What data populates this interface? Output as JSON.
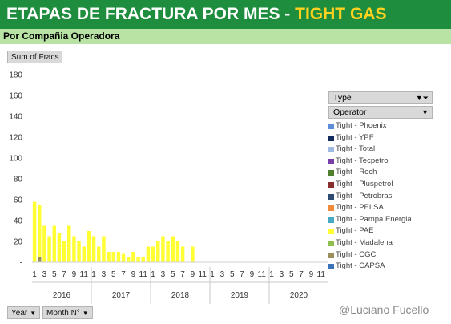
{
  "header": {
    "title_main": "ETAPAS DE FRACTURA POR MES - ",
    "title_accent": "TIGHT GAS",
    "subtitle": "Por Compañia Operadora"
  },
  "pivot": {
    "values_field": "Sum of Fracs",
    "series_field": "Type",
    "legend_field": "Operator",
    "axis_fields": [
      "Year",
      "Month N°"
    ]
  },
  "watermark": "@Luciano Fucello",
  "colors": {
    "Tight - Phoenix": "#5b8ed6",
    "Tight - YPF": "#132a5e",
    "Tight - Total": "#9dbbe2",
    "Tight - Tecpetrol": "#7a3fa6",
    "Tight - Roch": "#4f7f2e",
    "Tight - Pluspetrol": "#8a2f2f",
    "Tight - Petrobras": "#2d4a73",
    "Tight - PELSA": "#f28a3c",
    "Tight - Pampa Energia": "#48a9c5",
    "Tight - PAE": "#ffff33",
    "Tight - Madalena": "#8fbf4f",
    "Tight - CGC": "#9c8f5a",
    "Tight - CAPSA": "#3a73b8"
  },
  "chart_data": {
    "type": "bar",
    "stacked": true,
    "ylim": [
      0,
      180
    ],
    "yticks": [
      0,
      20,
      40,
      60,
      80,
      100,
      120,
      140,
      160,
      180
    ],
    "ytick_labels": [
      "-",
      "20",
      "40",
      "60",
      "80",
      "100",
      "120",
      "140",
      "160",
      "180"
    ],
    "grid": false,
    "legend_position": "right",
    "years": [
      "2016",
      "2017",
      "2018",
      "2019",
      "2020"
    ],
    "month_tick_labels": [
      "1",
      "3",
      "5",
      "7",
      "9",
      "11"
    ],
    "categories": [
      "2016-01",
      "2016-02",
      "2016-03",
      "2016-04",
      "2016-05",
      "2016-06",
      "2016-07",
      "2016-08",
      "2016-09",
      "2016-10",
      "2016-11",
      "2016-12",
      "2017-01",
      "2017-02",
      "2017-03",
      "2017-04",
      "2017-05",
      "2017-06",
      "2017-07",
      "2017-08",
      "2017-09",
      "2017-10",
      "2017-11",
      "2017-12",
      "2018-01",
      "2018-02",
      "2018-03",
      "2018-04",
      "2018-05",
      "2018-06",
      "2018-07",
      "2018-08",
      "2018-09",
      "2018-10",
      "2018-11",
      "2018-12",
      "2019-01",
      "2019-02",
      "2019-03",
      "2019-04",
      "2019-05",
      "2019-06",
      "2019-07",
      "2019-08",
      "2019-09",
      "2019-10",
      "2019-11",
      "2019-12",
      "2020-01",
      "2020-02",
      "2020-03",
      "2020-04",
      "2020-05",
      "2020-06",
      "2020-07",
      "2020-08",
      "2020-09",
      "2020-10",
      "2020-11",
      "2020-12"
    ],
    "series": [
      {
        "name": "Tight - CAPSA",
        "values": [
          0,
          0,
          0,
          0,
          0,
          0,
          0,
          0,
          0,
          0,
          0,
          0,
          0,
          0,
          0,
          0,
          0,
          0,
          0,
          0,
          0,
          0,
          0,
          0,
          0,
          0,
          0,
          0,
          0,
          0,
          0,
          0,
          0,
          0,
          0,
          0,
          0,
          0,
          0,
          0,
          0,
          0,
          0,
          0,
          0,
          0,
          0,
          0,
          0,
          0,
          0,
          0,
          0,
          0,
          0,
          0,
          0,
          0,
          0,
          0
        ]
      },
      {
        "name": "Tight - CGC",
        "values": [
          0,
          5,
          0,
          0,
          0,
          0,
          0,
          0,
          0,
          0,
          0,
          0,
          0,
          0,
          0,
          0,
          0,
          0,
          0,
          0,
          0,
          0,
          0,
          0,
          0,
          0,
          0,
          0,
          0,
          0,
          0,
          0,
          0,
          0,
          0,
          0,
          0,
          0,
          0,
          0,
          0,
          0,
          0,
          0,
          0,
          0,
          0,
          0,
          0,
          0,
          0,
          0,
          0,
          0,
          0,
          0,
          0,
          0,
          0,
          0
        ]
      },
      {
        "name": "Tight - Madalena",
        "values": [
          0,
          0,
          0,
          0,
          0,
          0,
          0,
          0,
          0,
          0,
          0,
          0,
          0,
          0,
          0,
          0,
          0,
          0,
          0,
          0,
          0,
          0,
          0,
          0,
          0,
          0,
          0,
          0,
          0,
          0,
          0,
          0,
          0,
          0,
          0,
          0,
          0,
          0,
          0,
          0,
          0,
          0,
          0,
          0,
          0,
          0,
          0,
          0,
          0,
          0,
          0,
          0,
          0,
          0,
          0,
          0,
          0,
          0,
          0,
          0
        ]
      },
      {
        "name": "Tight - PAE",
        "values": [
          58,
          50,
          35,
          25,
          35,
          28,
          20,
          35,
          25,
          20,
          15,
          30,
          25,
          15,
          25,
          10,
          10,
          10,
          8,
          5,
          10,
          5,
          5,
          15,
          15,
          20,
          25,
          20,
          25,
          20,
          15,
          0,
          15,
          0,
          0,
          0,
          0,
          0,
          0,
          0,
          0,
          0,
          0,
          0,
          0,
          0,
          0,
          0,
          0,
          0,
          0,
          0,
          0,
          0,
          0,
          0,
          0,
          0,
          0,
          0
        ]
      },
      {
        "name": "Tight - Pampa Energia",
        "values": [
          0,
          0,
          0,
          0,
          0,
          0,
          0,
          0,
          0,
          0,
          0,
          0,
          0,
          0,
          0,
          0,
          0,
          0,
          0,
          0,
          0,
          0,
          0,
          0,
          0,
          0,
          0,
          0,
          0,
          0,
          0,
          0,
          0,
          0,
          0,
          0,
          0,
          0,
          0,
          0,
          0,
          0,
          0,
          0,
          0,
          0,
          0,
          0,
          0,
          0,
          0,
          0,
          0,
          0,
          0,
          0,
          0,
          0,
          0,
          0
        ]
      },
      {
        "name": "Tight - PELSA",
        "values": [
          0,
          0,
          0,
          0,
          0,
          0,
          0,
          0,
          0,
          0,
          0,
          0,
          0,
          0,
          0,
          0,
          0,
          0,
          0,
          0,
          0,
          0,
          0,
          0,
          0,
          0,
          0,
          0,
          0,
          0,
          0,
          0,
          0,
          0,
          0,
          0,
          0,
          0,
          0,
          0,
          0,
          0,
          0,
          0,
          0,
          0,
          0,
          0,
          0,
          0,
          0,
          0,
          0,
          0,
          0,
          0,
          0,
          0,
          0,
          0
        ]
      },
      {
        "name": "Tight - Petrobras",
        "values": [
          0,
          0,
          0,
          0,
          0,
          0,
          0,
          0,
          0,
          0,
          0,
          0,
          0,
          0,
          0,
          0,
          0,
          0,
          0,
          0,
          0,
          0,
          0,
          0,
          0,
          0,
          0,
          0,
          0,
          0,
          0,
          0,
          0,
          0,
          0,
          0,
          0,
          0,
          0,
          0,
          0,
          0,
          0,
          0,
          0,
          0,
          0,
          0,
          0,
          0,
          0,
          0,
          0,
          0,
          0,
          0,
          0,
          0,
          0,
          0
        ]
      },
      {
        "name": "Tight - Pluspetrol",
        "values": [
          0,
          0,
          0,
          0,
          0,
          0,
          0,
          0,
          0,
          0,
          0,
          0,
          0,
          0,
          0,
          0,
          0,
          0,
          0,
          0,
          0,
          0,
          0,
          0,
          0,
          0,
          0,
          0,
          0,
          0,
          0,
          0,
          0,
          0,
          0,
          0,
          0,
          0,
          0,
          0,
          0,
          0,
          0,
          0,
          0,
          0,
          0,
          0,
          0,
          0,
          0,
          0,
          0,
          0,
          0,
          0,
          0,
          0,
          0,
          0
        ]
      },
      {
        "name": "Tight - Roch",
        "values": [
          0,
          0,
          0,
          0,
          0,
          0,
          0,
          0,
          0,
          0,
          0,
          0,
          0,
          0,
          0,
          0,
          0,
          0,
          0,
          0,
          0,
          0,
          0,
          0,
          0,
          0,
          0,
          0,
          0,
          0,
          0,
          0,
          0,
          0,
          0,
          0,
          0,
          0,
          0,
          0,
          0,
          0,
          0,
          0,
          0,
          0,
          0,
          0,
          0,
          0,
          0,
          0,
          0,
          0,
          0,
          0,
          0,
          0,
          0,
          0
        ]
      },
      {
        "name": "Tight - Tecpetrol",
        "values": [
          0,
          0,
          0,
          0,
          0,
          0,
          0,
          0,
          0,
          0,
          0,
          0,
          0,
          0,
          0,
          0,
          0,
          0,
          0,
          0,
          0,
          0,
          0,
          0,
          0,
          0,
          0,
          0,
          0,
          0,
          0,
          0,
          0,
          0,
          0,
          0,
          0,
          0,
          0,
          0,
          0,
          0,
          0,
          0,
          0,
          0,
          0,
          0,
          0,
          0,
          0,
          0,
          0,
          0,
          0,
          0,
          0,
          0,
          0,
          0
        ]
      },
      {
        "name": "Tight - Total",
        "values": [
          0,
          0,
          0,
          0,
          0,
          0,
          0,
          0,
          0,
          0,
          0,
          0,
          0,
          0,
          0,
          0,
          0,
          0,
          0,
          0,
          0,
          0,
          0,
          0,
          0,
          0,
          0,
          0,
          0,
          0,
          0,
          0,
          0,
          0,
          0,
          0,
          0,
          0,
          0,
          0,
          0,
          0,
          0,
          0,
          0,
          0,
          0,
          0,
          0,
          0,
          0,
          0,
          0,
          0,
          0,
          0,
          0,
          0,
          0,
          0
        ]
      },
      {
        "name": "Tight - YPF",
        "values": [
          0,
          0,
          0,
          0,
          0,
          0,
          0,
          0,
          0,
          0,
          0,
          0,
          0,
          0,
          0,
          0,
          0,
          0,
          0,
          0,
          0,
          0,
          0,
          0,
          0,
          0,
          0,
          0,
          0,
          0,
          0,
          0,
          0,
          0,
          0,
          0,
          0,
          0,
          0,
          0,
          0,
          0,
          0,
          0,
          0,
          0,
          0,
          0,
          0,
          0,
          0,
          0,
          0,
          0,
          0,
          0,
          0,
          0,
          0,
          0
        ]
      },
      {
        "name": "Tight - Phoenix",
        "values": [
          0,
          0,
          0,
          0,
          0,
          0,
          0,
          0,
          0,
          0,
          0,
          0,
          0,
          0,
          0,
          0,
          0,
          0,
          0,
          0,
          0,
          0,
          0,
          0,
          0,
          0,
          0,
          0,
          0,
          0,
          0,
          0,
          0,
          0,
          0,
          0,
          0,
          0,
          0,
          0,
          0,
          0,
          0,
          0,
          0,
          0,
          0,
          0,
          0,
          0,
          0,
          0,
          0,
          0,
          0,
          0,
          0,
          0,
          0,
          0
        ]
      }
    ]
  }
}
